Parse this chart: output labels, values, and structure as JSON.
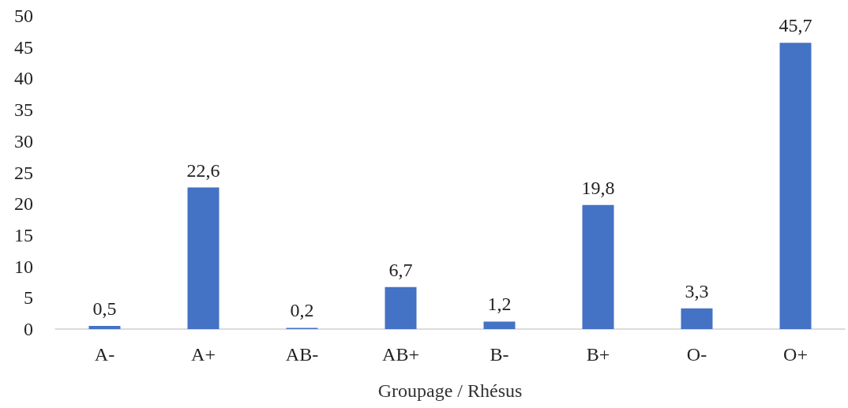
{
  "chart_data": {
    "type": "bar",
    "xlabel": "Groupage / Rhésus",
    "categories": [
      "A-",
      "A+",
      "AB-",
      "AB+",
      "B-",
      "B+",
      "O-",
      "O+"
    ],
    "values": [
      0.5,
      22.6,
      0.2,
      6.7,
      1.2,
      19.8,
      3.3,
      45.7
    ],
    "value_labels": [
      "0,5",
      "22,6",
      "0,2",
      "6,7",
      "1,2",
      "19,8",
      "3,3",
      "45,7"
    ],
    "color": "#4472c4",
    "ylim": [
      0,
      50
    ],
    "yticks": [
      0,
      5,
      10,
      15,
      20,
      25,
      30,
      35,
      40,
      45,
      50
    ],
    "grid": false
  }
}
